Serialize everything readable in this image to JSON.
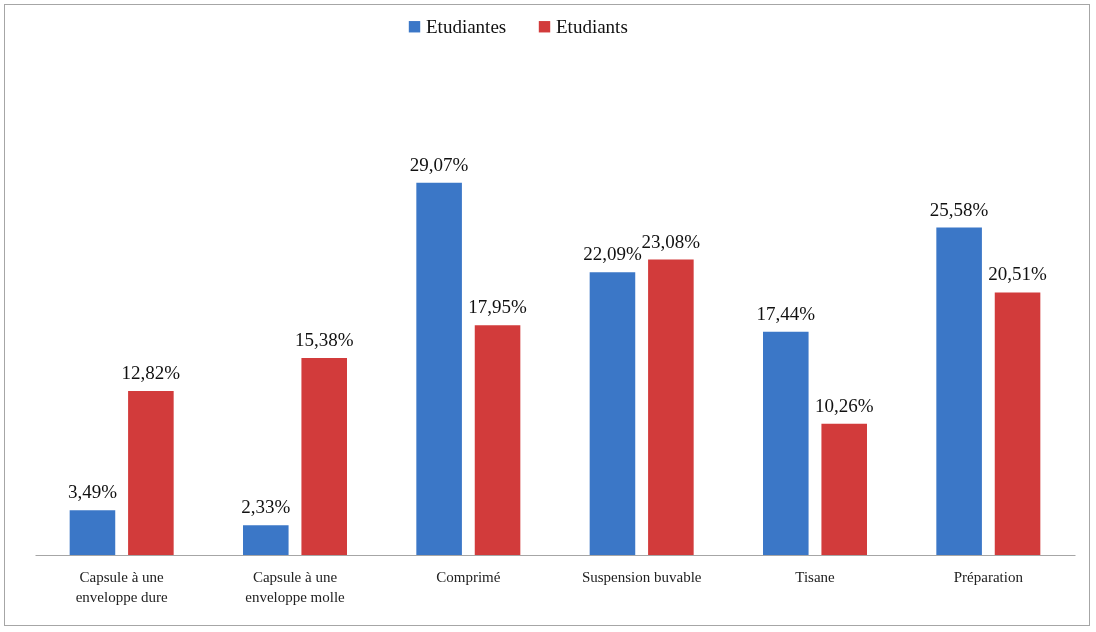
{
  "chart_data": {
    "type": "bar",
    "categories": [
      "Capsule à une enveloppe dure",
      "Capsule à une enveloppe molle",
      "Comprimé",
      "Suspension buvable",
      "Tisane",
      "Préparation"
    ],
    "series": [
      {
        "name": "Etudiantes",
        "color": "#3b77c7",
        "values": [
          3.49,
          2.33,
          29.07,
          22.09,
          17.44,
          25.58
        ],
        "value_labels": [
          "3,49%",
          "2,33%",
          "29,07%",
          "22,09%",
          "17,44%",
          "25,58%"
        ]
      },
      {
        "name": "Etudiants",
        "color": "#d23b3b",
        "values": [
          12.82,
          15.38,
          17.95,
          23.08,
          10.26,
          20.51
        ],
        "value_labels": [
          "12,82%",
          "15,38%",
          "17,95%",
          "23,08%",
          "10,26%",
          "20,51%"
        ]
      }
    ],
    "legend": "top"
  }
}
